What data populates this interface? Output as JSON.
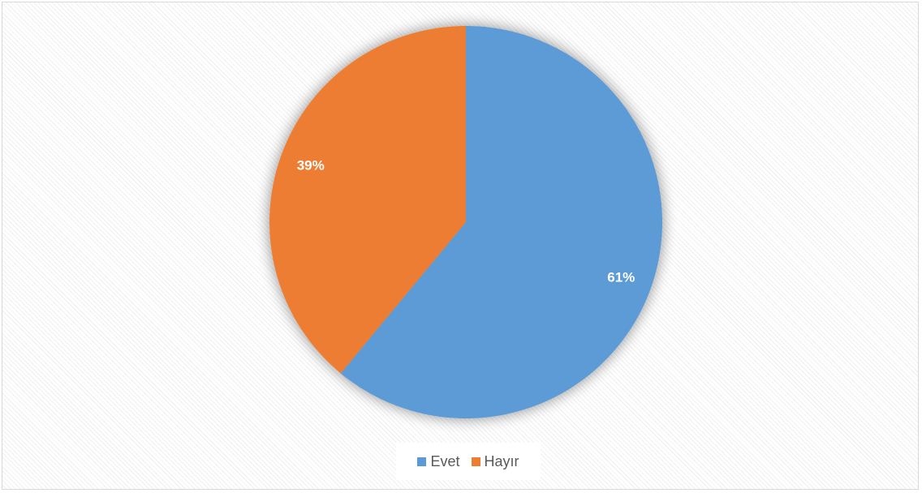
{
  "chart_data": {
    "type": "pie",
    "title": "",
    "categories": [
      "Evet",
      "Hayır"
    ],
    "values": [
      61,
      39
    ],
    "data_labels": [
      "61%",
      "39%"
    ],
    "colors": [
      "#5B9BD5",
      "#ED7D31"
    ],
    "start_angle_deg": 0,
    "direction": "clockwise",
    "legend_position": "bottom"
  },
  "legend": {
    "items": [
      {
        "label": "Evet",
        "color": "#5B9BD5"
      },
      {
        "label": "Hayır",
        "color": "#ED7D31"
      }
    ]
  }
}
